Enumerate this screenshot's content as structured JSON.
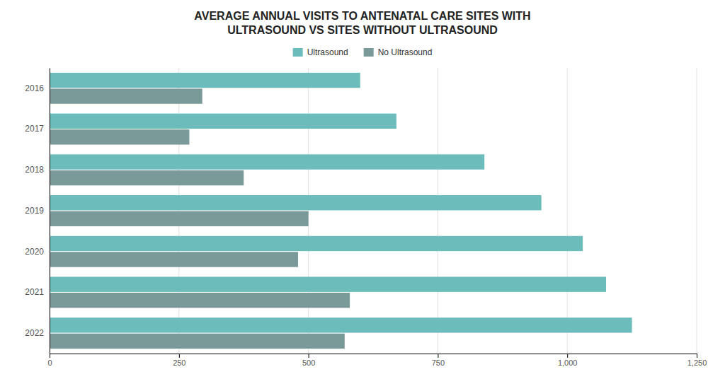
{
  "chart_data": {
    "type": "bar",
    "orientation": "horizontal",
    "title": "AVERAGE ANNUAL VISITS TO ANTENATAL CARE SITES WITH\nULTRASOUND VS SITES WITHOUT ULTRASOUND",
    "categories": [
      "2016",
      "2017",
      "2018",
      "2019",
      "2020",
      "2021",
      "2022"
    ],
    "series": [
      {
        "name": "Ultrasound",
        "color": "#6dbcbc",
        "values": [
          600,
          670,
          840,
          950,
          1030,
          1075,
          1125
        ]
      },
      {
        "name": "No Ultrasound",
        "color": "#7a9999",
        "values": [
          295,
          270,
          375,
          500,
          480,
          580,
          570
        ]
      }
    ],
    "xlim": [
      0,
      1250
    ],
    "xticks": [
      0,
      250,
      500,
      750,
      {
        "value": 1000,
        "label": "1,000"
      },
      {
        "value": 1250,
        "label": "1,250"
      }
    ],
    "grid": true,
    "legend": "top"
  }
}
